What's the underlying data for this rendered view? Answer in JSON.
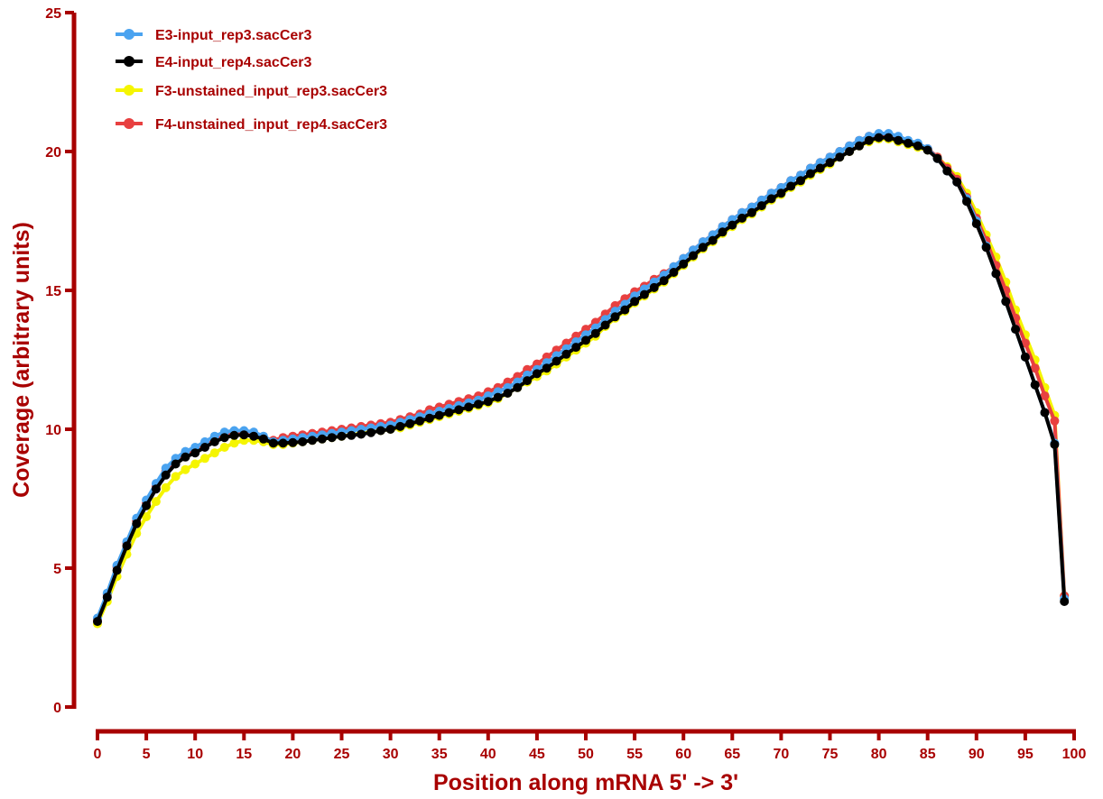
{
  "chart_data": {
    "type": "line",
    "title": "",
    "xlabel": "Position along mRNA 5' -> 3'",
    "ylabel": "Coverage (arbitrary units)",
    "xlim": [
      0,
      100
    ],
    "ylim": [
      0,
      25
    ],
    "xticks": [
      "0",
      "5",
      "10",
      "15",
      "20",
      "25",
      "30",
      "35",
      "40",
      "45",
      "50",
      "55",
      "60",
      "65",
      "70",
      "75",
      "80",
      "85",
      "90",
      "95",
      "100"
    ],
    "yticks": [
      "0",
      "5",
      "10",
      "15",
      "20",
      "25"
    ],
    "grid": false,
    "legend_position": "top-left",
    "x": [
      0,
      1,
      2,
      3,
      4,
      5,
      6,
      7,
      8,
      9,
      10,
      11,
      12,
      13,
      14,
      15,
      16,
      17,
      18,
      19,
      20,
      21,
      22,
      23,
      24,
      25,
      26,
      27,
      28,
      29,
      30,
      31,
      32,
      33,
      34,
      35,
      36,
      37,
      38,
      39,
      40,
      41,
      42,
      43,
      44,
      45,
      46,
      47,
      48,
      49,
      50,
      51,
      52,
      53,
      54,
      55,
      56,
      57,
      58,
      59,
      60,
      61,
      62,
      63,
      64,
      65,
      66,
      67,
      68,
      69,
      70,
      71,
      72,
      73,
      74,
      75,
      76,
      77,
      78,
      79,
      80,
      81,
      82,
      83,
      84,
      85,
      86,
      87,
      88,
      89,
      90,
      91,
      92,
      93,
      94,
      95,
      96,
      97,
      98,
      99
    ],
    "series": [
      {
        "name": "E3-input_rep3.sacCer3",
        "color": "#4aa3f0",
        "values": [
          3.2,
          4.1,
          5.1,
          5.95,
          6.8,
          7.45,
          8.05,
          8.6,
          8.95,
          9.2,
          9.35,
          9.55,
          9.75,
          9.9,
          9.95,
          9.95,
          9.9,
          9.75,
          9.55,
          9.6,
          9.65,
          9.7,
          9.75,
          9.8,
          9.85,
          9.9,
          9.95,
          10.0,
          10.05,
          10.1,
          10.15,
          10.25,
          10.35,
          10.45,
          10.55,
          10.65,
          10.75,
          10.85,
          10.95,
          11.05,
          11.2,
          11.35,
          11.5,
          11.7,
          11.95,
          12.15,
          12.4,
          12.65,
          12.9,
          13.15,
          13.4,
          13.65,
          13.95,
          14.25,
          14.5,
          14.8,
          15.05,
          15.3,
          15.55,
          15.85,
          16.15,
          16.45,
          16.75,
          17.0,
          17.3,
          17.55,
          17.8,
          18.0,
          18.25,
          18.5,
          18.7,
          18.95,
          19.15,
          19.4,
          19.6,
          19.8,
          20.0,
          20.2,
          20.4,
          20.55,
          20.65,
          20.65,
          20.55,
          20.4,
          20.3,
          20.1,
          19.75,
          19.3,
          18.9,
          18.3,
          17.5,
          16.6,
          15.6,
          14.6,
          13.6,
          12.6,
          11.6,
          10.6,
          9.5,
          3.9
        ]
      },
      {
        "name": "E4-input_rep4.sacCer3",
        "color": "#000000",
        "values": [
          3.08,
          3.95,
          4.92,
          5.8,
          6.6,
          7.25,
          7.85,
          8.35,
          8.75,
          9.0,
          9.15,
          9.35,
          9.55,
          9.7,
          9.78,
          9.8,
          9.75,
          9.65,
          9.5,
          9.5,
          9.52,
          9.55,
          9.6,
          9.65,
          9.7,
          9.75,
          9.78,
          9.82,
          9.88,
          9.95,
          10.0,
          10.1,
          10.2,
          10.3,
          10.4,
          10.5,
          10.6,
          10.7,
          10.8,
          10.9,
          11.0,
          11.15,
          11.3,
          11.5,
          11.75,
          12.0,
          12.2,
          12.45,
          12.7,
          12.95,
          13.2,
          13.45,
          13.75,
          14.05,
          14.3,
          14.6,
          14.85,
          15.1,
          15.35,
          15.65,
          15.95,
          16.25,
          16.55,
          16.8,
          17.1,
          17.35,
          17.6,
          17.8,
          18.05,
          18.3,
          18.5,
          18.75,
          18.95,
          19.2,
          19.4,
          19.6,
          19.8,
          20.0,
          20.2,
          20.4,
          20.5,
          20.5,
          20.4,
          20.3,
          20.2,
          20.05,
          19.75,
          19.3,
          18.9,
          18.2,
          17.4,
          16.55,
          15.6,
          14.6,
          13.6,
          12.6,
          11.6,
          10.6,
          9.45,
          3.8
        ]
      },
      {
        "name": "F3-unstained_input_rep3.sacCer3",
        "color": "#f5f500",
        "values": [
          3.0,
          3.8,
          4.7,
          5.5,
          6.25,
          6.85,
          7.4,
          7.9,
          8.3,
          8.55,
          8.75,
          8.95,
          9.15,
          9.35,
          9.5,
          9.6,
          9.6,
          9.55,
          9.45,
          9.45,
          9.5,
          9.55,
          9.6,
          9.65,
          9.7,
          9.75,
          9.8,
          9.85,
          9.9,
          9.95,
          10.0,
          10.05,
          10.15,
          10.25,
          10.35,
          10.45,
          10.55,
          10.65,
          10.75,
          10.85,
          10.95,
          11.1,
          11.3,
          11.5,
          11.7,
          11.9,
          12.1,
          12.35,
          12.6,
          12.85,
          13.1,
          13.35,
          13.7,
          14.0,
          14.25,
          14.55,
          14.8,
          15.05,
          15.3,
          15.6,
          15.9,
          16.2,
          16.5,
          16.75,
          17.05,
          17.3,
          17.55,
          17.75,
          18.0,
          18.25,
          18.45,
          18.7,
          18.9,
          19.15,
          19.35,
          19.55,
          19.8,
          20.0,
          20.2,
          20.35,
          20.45,
          20.45,
          20.35,
          20.25,
          20.15,
          20.05,
          19.8,
          19.45,
          19.1,
          18.5,
          17.8,
          17.0,
          16.2,
          15.3,
          14.3,
          13.4,
          12.5,
          11.5,
          10.5,
          4.0
        ]
      },
      {
        "name": "F4-unstained_input_rep4.sacCer3",
        "color": "#e84040",
        "values": [
          3.15,
          4.05,
          5.05,
          5.9,
          6.7,
          7.35,
          7.95,
          8.5,
          8.85,
          9.1,
          9.25,
          9.45,
          9.65,
          9.8,
          9.85,
          9.85,
          9.8,
          9.7,
          9.6,
          9.7,
          9.75,
          9.8,
          9.85,
          9.9,
          9.95,
          10.0,
          10.05,
          10.1,
          10.15,
          10.2,
          10.25,
          10.35,
          10.45,
          10.55,
          10.7,
          10.8,
          10.9,
          11.0,
          11.1,
          11.2,
          11.35,
          11.5,
          11.7,
          11.9,
          12.15,
          12.35,
          12.6,
          12.85,
          13.1,
          13.35,
          13.6,
          13.85,
          14.15,
          14.45,
          14.7,
          14.95,
          15.15,
          15.4,
          15.6,
          15.85,
          16.15,
          16.45,
          16.75,
          17.0,
          17.3,
          17.55,
          17.8,
          18.0,
          18.25,
          18.5,
          18.7,
          18.95,
          19.15,
          19.4,
          19.6,
          19.8,
          20.0,
          20.2,
          20.4,
          20.55,
          20.6,
          20.6,
          20.45,
          20.35,
          20.25,
          20.1,
          19.8,
          19.4,
          19.0,
          18.35,
          17.6,
          16.8,
          15.9,
          15.0,
          14.0,
          13.1,
          12.2,
          11.2,
          10.3,
          4.0
        ]
      }
    ]
  }
}
